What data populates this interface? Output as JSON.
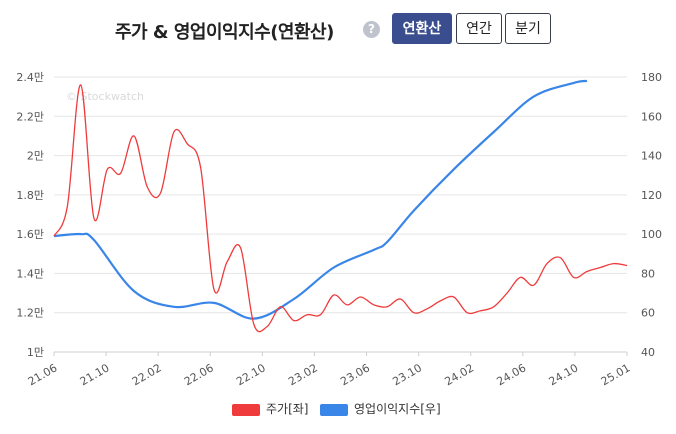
{
  "header": {
    "title": "주가 & 영업이익지수(연환산)",
    "help_icon": "?",
    "buttons": [
      "연환산",
      "연간",
      "분기"
    ],
    "active_button": "연환산"
  },
  "watermark": "© Stockwatch",
  "colors": {
    "price": "#ef3b3b",
    "index": "#3a86e8",
    "active": "#3a4e8f"
  },
  "legend": [
    {
      "label": "주가[좌]",
      "color": "#ef3b3b"
    },
    {
      "label": "영업이익지수[우]",
      "color": "#3a86e8"
    }
  ],
  "chart_data": {
    "type": "line",
    "x_ticks": [
      "21.06",
      "21.10",
      "22.02",
      "22.06",
      "22.10",
      "23.02",
      "23.06",
      "23.10",
      "24.02",
      "24.06",
      "24.10",
      "25.01"
    ],
    "x_range": [
      0,
      43
    ],
    "y_left": {
      "ticks": [
        "1만",
        "1.2만",
        "1.4만",
        "1.6만",
        "1.8만",
        "2만",
        "2.2만",
        "2.4만"
      ],
      "range": [
        10000,
        24000
      ]
    },
    "y_right": {
      "ticks": [
        "40",
        "60",
        "80",
        "100",
        "120",
        "140",
        "160",
        "180"
      ],
      "range": [
        40,
        180
      ]
    },
    "grid": "horizontal",
    "series": [
      {
        "name": "주가[좌]",
        "axis": "left",
        "points": [
          [
            0,
            15900
          ],
          [
            1,
            17400
          ],
          [
            2,
            23600
          ],
          [
            3,
            16800
          ],
          [
            4,
            19300
          ],
          [
            5,
            19100
          ],
          [
            6,
            21000
          ],
          [
            7,
            18400
          ],
          [
            8,
            18100
          ],
          [
            9,
            21200
          ],
          [
            10,
            20600
          ],
          [
            11,
            19400
          ],
          [
            12,
            13200
          ],
          [
            13,
            14600
          ],
          [
            14,
            15300
          ],
          [
            15,
            11400
          ],
          [
            16,
            11300
          ],
          [
            17,
            12300
          ],
          [
            18,
            11600
          ],
          [
            19,
            11900
          ],
          [
            20,
            11900
          ],
          [
            21,
            12900
          ],
          [
            22,
            12400
          ],
          [
            23,
            12800
          ],
          [
            24,
            12400
          ],
          [
            25,
            12300
          ],
          [
            26,
            12700
          ],
          [
            27,
            12000
          ],
          [
            28,
            12200
          ],
          [
            29,
            12600
          ],
          [
            30,
            12800
          ],
          [
            31,
            12000
          ],
          [
            32,
            12100
          ],
          [
            33,
            12300
          ],
          [
            34,
            13000
          ],
          [
            35,
            13800
          ],
          [
            36,
            13400
          ],
          [
            37,
            14500
          ],
          [
            38,
            14800
          ],
          [
            39,
            13800
          ],
          [
            40,
            14100
          ],
          [
            41,
            14300
          ],
          [
            42,
            14500
          ],
          [
            43,
            14400
          ]
        ]
      },
      {
        "name": "영업이익지수[우]",
        "axis": "right",
        "points": [
          [
            0,
            99
          ],
          [
            2,
            100
          ],
          [
            3,
            97
          ],
          [
            6,
            71
          ],
          [
            9,
            63
          ],
          [
            12,
            65
          ],
          [
            15,
            57
          ],
          [
            18,
            67
          ],
          [
            21,
            83
          ],
          [
            24,
            92
          ],
          [
            25,
            96
          ],
          [
            27,
            112
          ],
          [
            30,
            133
          ],
          [
            33,
            152
          ],
          [
            36,
            170
          ],
          [
            39,
            177
          ],
          [
            40,
            178
          ]
        ]
      }
    ]
  }
}
